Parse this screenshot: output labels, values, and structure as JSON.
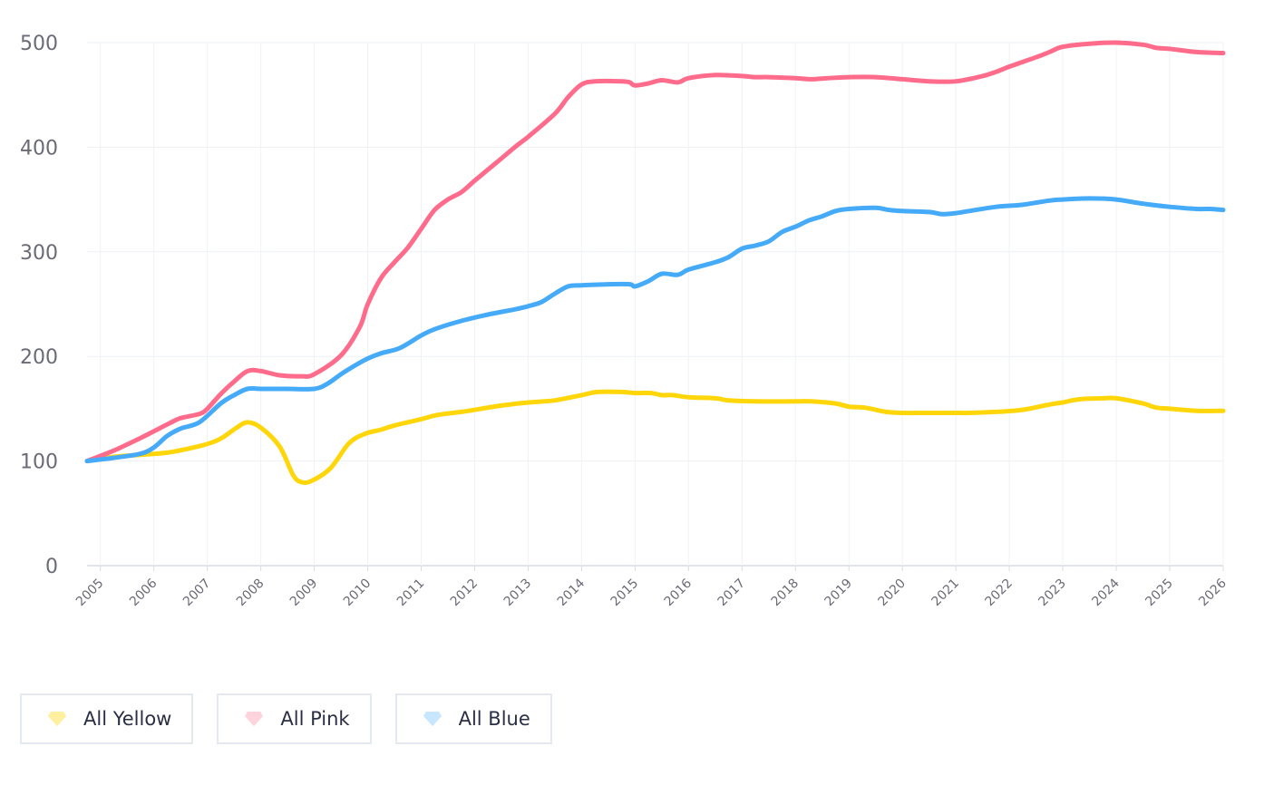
{
  "chart_data": {
    "type": "line",
    "ylim": [
      0,
      500
    ],
    "yticks": [
      0,
      100,
      200,
      300,
      400,
      500
    ],
    "xlim": [
      2004.75,
      2026.0
    ],
    "xticks": [
      "2005",
      "2006",
      "2007",
      "2008",
      "2009",
      "2010",
      "2011",
      "2012",
      "2013",
      "2014",
      "2015",
      "2016",
      "2017",
      "2018",
      "2019",
      "2020",
      "2021",
      "2022",
      "2023",
      "2024",
      "2025",
      "2026"
    ],
    "grid": true,
    "legend_position": "bottom-left",
    "series": [
      {
        "name": "All Yellow",
        "color": "#ffd60a",
        "icon_color": "#fff0a0",
        "points": [
          [
            2004.75,
            100
          ],
          [
            2005.25,
            104
          ],
          [
            2005.75,
            106
          ],
          [
            2006.25,
            108
          ],
          [
            2006.75,
            113
          ],
          [
            2007.1,
            118
          ],
          [
            2007.3,
            123
          ],
          [
            2007.55,
            132
          ],
          [
            2007.75,
            137
          ],
          [
            2008.0,
            132
          ],
          [
            2008.35,
            114
          ],
          [
            2008.6,
            87
          ],
          [
            2008.75,
            80
          ],
          [
            2008.95,
            81
          ],
          [
            2009.3,
            93
          ],
          [
            2009.65,
            117
          ],
          [
            2009.95,
            126
          ],
          [
            2010.25,
            130
          ],
          [
            2010.5,
            134
          ],
          [
            2011.0,
            140
          ],
          [
            2011.3,
            144
          ],
          [
            2011.75,
            147
          ],
          [
            2012.0,
            149
          ],
          [
            2012.5,
            153
          ],
          [
            2013.0,
            156
          ],
          [
            2013.5,
            158
          ],
          [
            2014.0,
            163
          ],
          [
            2014.3,
            166
          ],
          [
            2014.75,
            166
          ],
          [
            2015.0,
            165
          ],
          [
            2015.3,
            165
          ],
          [
            2015.5,
            163
          ],
          [
            2015.7,
            163
          ],
          [
            2016.0,
            161
          ],
          [
            2016.5,
            160
          ],
          [
            2016.75,
            158
          ],
          [
            2017.25,
            157
          ],
          [
            2018.0,
            157
          ],
          [
            2018.3,
            157
          ],
          [
            2018.75,
            155
          ],
          [
            2019.0,
            152
          ],
          [
            2019.3,
            151
          ],
          [
            2019.7,
            147
          ],
          [
            2020.0,
            146
          ],
          [
            2020.5,
            146
          ],
          [
            2021.0,
            146
          ],
          [
            2021.25,
            146
          ],
          [
            2021.75,
            147
          ],
          [
            2022.25,
            149
          ],
          [
            2022.75,
            154
          ],
          [
            2023.0,
            156
          ],
          [
            2023.3,
            159
          ],
          [
            2023.75,
            160
          ],
          [
            2024.0,
            160
          ],
          [
            2024.5,
            155
          ],
          [
            2024.75,
            151
          ],
          [
            2025.0,
            150
          ],
          [
            2025.5,
            148
          ],
          [
            2026.0,
            148
          ]
        ]
      },
      {
        "name": "All Pink",
        "color": "#ff6b8b",
        "icon_color": "#ffd3dc",
        "points": [
          [
            2004.75,
            100
          ],
          [
            2005.25,
            110
          ],
          [
            2005.75,
            122
          ],
          [
            2006.25,
            135
          ],
          [
            2006.5,
            141
          ],
          [
            2006.85,
            145
          ],
          [
            2007.0,
            150
          ],
          [
            2007.25,
            164
          ],
          [
            2007.5,
            176
          ],
          [
            2007.75,
            186
          ],
          [
            2008.0,
            186
          ],
          [
            2008.35,
            182
          ],
          [
            2008.75,
            181
          ],
          [
            2009.0,
            183
          ],
          [
            2009.5,
            201
          ],
          [
            2009.85,
            228
          ],
          [
            2010.0,
            250
          ],
          [
            2010.25,
            275
          ],
          [
            2010.5,
            290
          ],
          [
            2010.75,
            304
          ],
          [
            2011.0,
            322
          ],
          [
            2011.25,
            340
          ],
          [
            2011.5,
            350
          ],
          [
            2011.75,
            357
          ],
          [
            2012.0,
            368
          ],
          [
            2012.4,
            385
          ],
          [
            2012.75,
            400
          ],
          [
            2013.0,
            410
          ],
          [
            2013.5,
            432
          ],
          [
            2013.75,
            448
          ],
          [
            2014.0,
            460
          ],
          [
            2014.25,
            463
          ],
          [
            2014.75,
            463
          ],
          [
            2014.9,
            462
          ],
          [
            2015.0,
            459
          ],
          [
            2015.25,
            461
          ],
          [
            2015.5,
            464
          ],
          [
            2015.8,
            462
          ],
          [
            2016.0,
            466
          ],
          [
            2016.5,
            469
          ],
          [
            2017.0,
            468
          ],
          [
            2017.25,
            467
          ],
          [
            2017.5,
            467
          ],
          [
            2018.0,
            466
          ],
          [
            2018.3,
            465
          ],
          [
            2018.6,
            466
          ],
          [
            2019.0,
            467
          ],
          [
            2019.5,
            467
          ],
          [
            2020.0,
            465
          ],
          [
            2020.5,
            463
          ],
          [
            2021.0,
            463
          ],
          [
            2021.5,
            468
          ],
          [
            2021.75,
            472
          ],
          [
            2022.0,
            477
          ],
          [
            2022.5,
            486
          ],
          [
            2022.75,
            491
          ],
          [
            2023.0,
            496
          ],
          [
            2023.5,
            499
          ],
          [
            2024.0,
            500
          ],
          [
            2024.5,
            498
          ],
          [
            2024.75,
            495
          ],
          [
            2025.0,
            494
          ],
          [
            2025.5,
            491
          ],
          [
            2026.0,
            490
          ]
        ]
      },
      {
        "name": "All Blue",
        "color": "#45aaf7",
        "icon_color": "#c7e6ff",
        "points": [
          [
            2004.75,
            100
          ],
          [
            2005.25,
            103
          ],
          [
            2005.75,
            107
          ],
          [
            2006.0,
            113
          ],
          [
            2006.25,
            124
          ],
          [
            2006.5,
            131
          ],
          [
            2006.85,
            137
          ],
          [
            2007.25,
            155
          ],
          [
            2007.5,
            163
          ],
          [
            2007.75,
            169
          ],
          [
            2008.0,
            169
          ],
          [
            2008.5,
            169
          ],
          [
            2009.0,
            169
          ],
          [
            2009.25,
            174
          ],
          [
            2009.5,
            183
          ],
          [
            2009.75,
            191
          ],
          [
            2010.0,
            198
          ],
          [
            2010.25,
            203
          ],
          [
            2010.6,
            208
          ],
          [
            2011.0,
            220
          ],
          [
            2011.25,
            226
          ],
          [
            2011.75,
            234
          ],
          [
            2012.25,
            240
          ],
          [
            2012.75,
            245
          ],
          [
            2013.0,
            248
          ],
          [
            2013.25,
            252
          ],
          [
            2013.5,
            260
          ],
          [
            2013.75,
            267
          ],
          [
            2014.0,
            268
          ],
          [
            2014.5,
            269
          ],
          [
            2014.9,
            269
          ],
          [
            2015.0,
            267
          ],
          [
            2015.25,
            272
          ],
          [
            2015.5,
            279
          ],
          [
            2015.8,
            278
          ],
          [
            2016.0,
            283
          ],
          [
            2016.5,
            290
          ],
          [
            2016.75,
            295
          ],
          [
            2017.0,
            303
          ],
          [
            2017.25,
            306
          ],
          [
            2017.5,
            310
          ],
          [
            2017.75,
            319
          ],
          [
            2018.0,
            324
          ],
          [
            2018.25,
            330
          ],
          [
            2018.5,
            334
          ],
          [
            2018.75,
            339
          ],
          [
            2019.0,
            341
          ],
          [
            2019.5,
            342
          ],
          [
            2019.75,
            340
          ],
          [
            2020.0,
            339
          ],
          [
            2020.5,
            338
          ],
          [
            2020.75,
            336
          ],
          [
            2021.0,
            337
          ],
          [
            2021.25,
            339
          ],
          [
            2021.75,
            343
          ],
          [
            2022.0,
            344
          ],
          [
            2022.25,
            345
          ],
          [
            2022.75,
            349
          ],
          [
            2023.0,
            350
          ],
          [
            2023.5,
            351
          ],
          [
            2024.0,
            350
          ],
          [
            2024.5,
            346
          ],
          [
            2025.0,
            343
          ],
          [
            2025.5,
            341
          ],
          [
            2025.75,
            341
          ],
          [
            2026.0,
            340
          ]
        ]
      }
    ]
  }
}
